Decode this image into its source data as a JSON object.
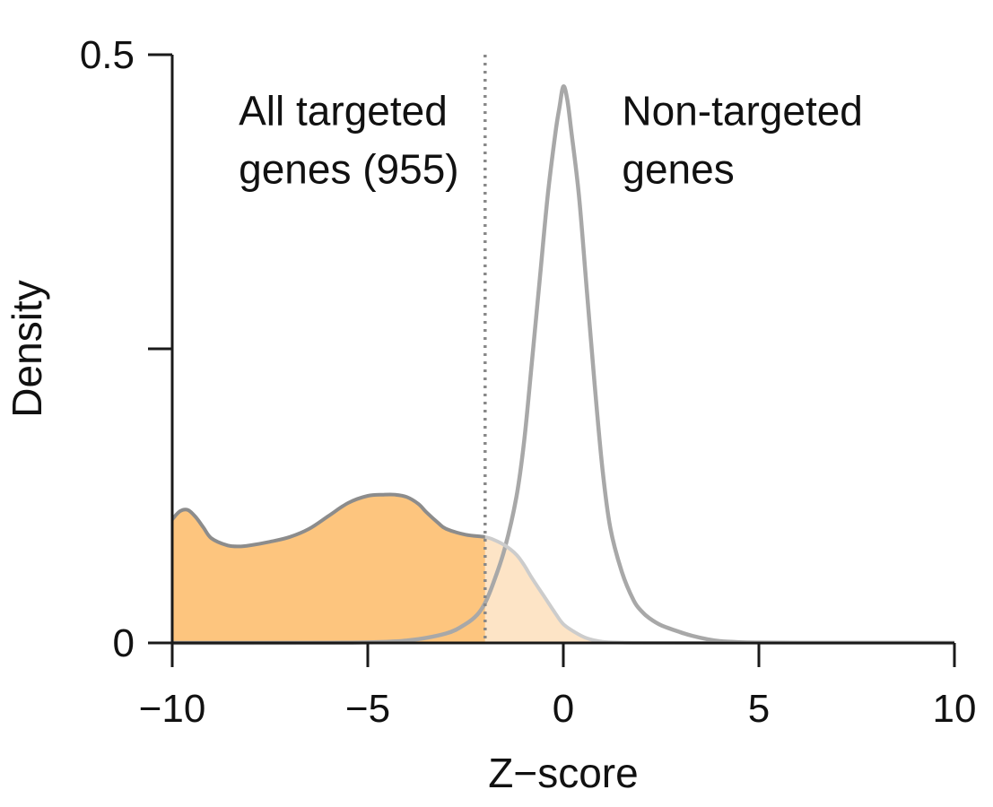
{
  "chart_data": {
    "type": "area",
    "title": "",
    "xlabel": "Z−score",
    "ylabel": "Density",
    "xlim": [
      -10,
      10
    ],
    "ylim": [
      0,
      0.5
    ],
    "x_ticks": [
      -10,
      -5,
      0,
      5,
      10
    ],
    "x_tick_labels": [
      "−10",
      "−5",
      "0",
      "5",
      "10"
    ],
    "y_ticks": [
      0,
      0.25,
      0.5
    ],
    "y_tick_labels": [
      "0",
      "",
      "0.5"
    ],
    "threshold": {
      "x": -2,
      "style": "dotted"
    },
    "annotations": [
      {
        "lines": [
          "All targeted",
          "genes (955)"
        ],
        "anchor_x": -8.3,
        "anchor_y": 0.44
      },
      {
        "lines": [
          "Non-targeted",
          "genes"
        ],
        "anchor_x": 1.5,
        "anchor_y": 0.44
      }
    ],
    "series": [
      {
        "name": "All targeted genes (955)",
        "fill_color": "#fdc57e",
        "fill_color_light": "#fde4c6",
        "stroke_color": "#8c8c8c",
        "stroke_color_light": "#cccccc",
        "x": [
          -10,
          -9.8,
          -9.6,
          -9.4,
          -9.2,
          -9.0,
          -8.6,
          -8.3,
          -8.0,
          -7.5,
          -7.0,
          -6.5,
          -6.0,
          -5.5,
          -5.0,
          -4.6,
          -4.3,
          -4.0,
          -3.7,
          -3.5,
          -3.2,
          -3.0,
          -2.5,
          -2.0,
          -1.8,
          -1.5,
          -1.2,
          -1.0,
          -0.8,
          -0.5,
          -0.2,
          0.0,
          0.3,
          0.6,
          1.0,
          1.5,
          2.0,
          3.0,
          5.0,
          10.0
        ],
        "y": [
          0.105,
          0.112,
          0.113,
          0.107,
          0.098,
          0.089,
          0.083,
          0.082,
          0.083,
          0.086,
          0.09,
          0.097,
          0.108,
          0.119,
          0.125,
          0.126,
          0.126,
          0.124,
          0.118,
          0.111,
          0.102,
          0.097,
          0.092,
          0.09,
          0.088,
          0.083,
          0.075,
          0.066,
          0.055,
          0.04,
          0.025,
          0.016,
          0.009,
          0.004,
          0.001,
          0.0003,
          0.0001,
          0.0,
          0.0,
          0.0
        ]
      },
      {
        "name": "Non-targeted genes",
        "stroke_color": "#a8a8a8",
        "x": [
          -10,
          -6,
          -5,
          -4,
          -3,
          -2.5,
          -2.2,
          -2.0,
          -1.8,
          -1.5,
          -1.2,
          -1.0,
          -0.8,
          -0.6,
          -0.4,
          -0.2,
          -0.1,
          0.0,
          0.1,
          0.2,
          0.4,
          0.6,
          0.8,
          1.0,
          1.2,
          1.5,
          1.8,
          2.0,
          2.2,
          2.5,
          3.0,
          3.3,
          3.7,
          4.0,
          4.5,
          5.0,
          6.0,
          8.0,
          10.0
        ],
        "y": [
          0.0,
          0.0001,
          0.0005,
          0.002,
          0.008,
          0.016,
          0.024,
          0.034,
          0.05,
          0.08,
          0.124,
          0.172,
          0.24,
          0.31,
          0.38,
          0.434,
          0.455,
          0.473,
          0.462,
          0.436,
          0.38,
          0.3,
          0.22,
          0.148,
          0.098,
          0.06,
          0.036,
          0.027,
          0.021,
          0.015,
          0.009,
          0.006,
          0.003,
          0.0015,
          0.0006,
          0.0003,
          0.0001,
          0.0001,
          0.0
        ]
      }
    ]
  }
}
